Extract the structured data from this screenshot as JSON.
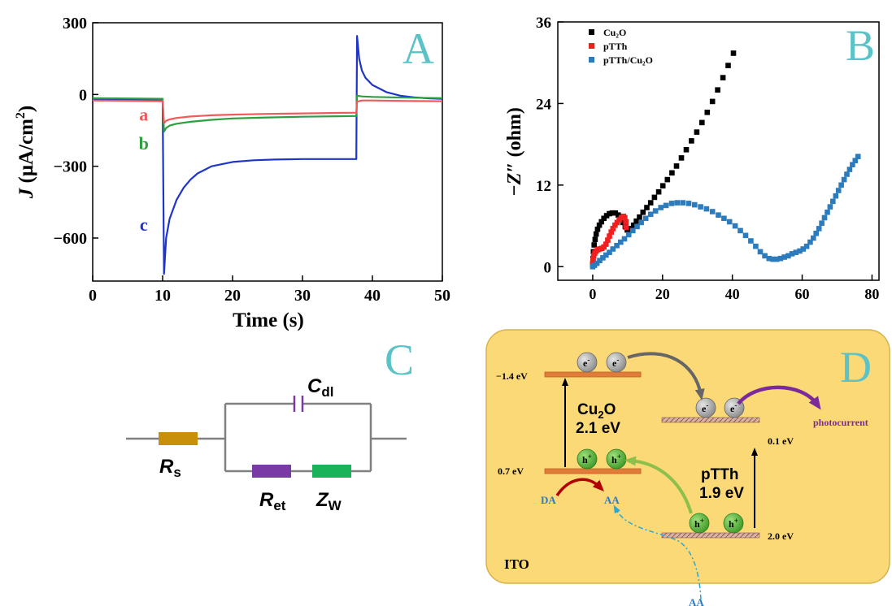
{
  "colors": {
    "red": "#f05a5a",
    "green": "#2e9e3e",
    "blue": "#1f35c8",
    "black": "#000000",
    "blue_sq": "#2b7bbd",
    "teal": "#5bc3c8",
    "panel_d_bg": "#fbd977",
    "orange_band": "#e07b39",
    "purple": "#7a2a9a",
    "green_ball": "#59b33a",
    "gray_ball": "#9a9a9a",
    "rs_color": "#c8900a",
    "ret_color": "#7a3aa5",
    "zw_color": "#1ab35a"
  },
  "panels": {
    "a": "A",
    "b": "B",
    "c": "C",
    "d": "D"
  },
  "chart_data": [
    {
      "type": "line",
      "xlabel": "Time (s)",
      "ylabel_parts": [
        "J",
        " (μA/cm",
        "2",
        ")"
      ],
      "xlim": [
        0,
        50
      ],
      "ylim": [
        -780,
        300
      ],
      "xticks": [
        0,
        10,
        20,
        30,
        40,
        50
      ],
      "yticks": [
        300,
        0,
        -300,
        -600
      ],
      "ytick_labels": [
        "300",
        "0",
        "−300",
        "−600"
      ],
      "series": [
        {
          "name": "c",
          "color_key": "blue",
          "x": [
            0,
            10,
            10.2,
            10.5,
            11,
            12,
            13,
            14,
            15,
            17,
            20,
            23,
            26,
            30,
            35,
            37.7,
            37.8,
            38.1,
            38.5,
            39,
            40,
            42,
            44,
            46,
            48,
            50
          ],
          "y": [
            -20,
            -25,
            -750,
            -600,
            -520,
            -440,
            -390,
            -355,
            -330,
            -300,
            -282,
            -275,
            -272,
            -270,
            -270,
            -270,
            245,
            150,
            100,
            70,
            40,
            10,
            -5,
            -12,
            -16,
            -18
          ]
        },
        {
          "name": "b",
          "color_key": "green",
          "x": [
            0,
            10,
            10.2,
            10.5,
            11,
            12,
            14,
            17,
            20,
            25,
            30,
            35,
            37.7,
            37.8,
            38.5,
            40,
            45,
            50
          ],
          "y": [
            -15,
            -18,
            -155,
            -140,
            -130,
            -122,
            -114,
            -106,
            -100,
            -96,
            -93,
            -91,
            -90,
            -5,
            -8,
            -10,
            -13,
            -15
          ]
        },
        {
          "name": "a",
          "color_key": "red",
          "x": [
            0,
            10,
            10.2,
            10.5,
            11,
            12,
            14,
            17,
            20,
            25,
            30,
            35,
            37.7,
            37.8,
            38.5,
            40,
            45,
            50
          ],
          "y": [
            -25,
            -28,
            -120,
            -110,
            -104,
            -98,
            -92,
            -87,
            -84,
            -81,
            -79,
            -77,
            -76,
            -30,
            -25,
            -25,
            -27,
            -28
          ]
        }
      ],
      "curve_labels": [
        {
          "text": "a",
          "color_key": "red",
          "x": 7.3,
          "y": -110
        },
        {
          "text": "b",
          "color_key": "green",
          "x": 7.3,
          "y": -230
        },
        {
          "text": "c",
          "color_key": "blue",
          "x": 7.3,
          "y": -570
        }
      ]
    },
    {
      "type": "scatter",
      "ylabel_parts": [
        "−Z″",
        " (ohm)"
      ],
      "xlim": [
        -10,
        82
      ],
      "ylim": [
        -2,
        36
      ],
      "xticks": [
        0,
        20,
        40,
        60,
        80
      ],
      "yticks": [
        0,
        12,
        24,
        36
      ],
      "legend": [
        "Cu₂O",
        "pTTh",
        "pTTh/Cu₂O"
      ],
      "series": [
        {
          "name": "Cu₂O",
          "color_key": "black",
          "points": [
            [
              0,
              0.3
            ],
            [
              0.1,
              1.2
            ],
            [
              0.2,
              2.2
            ],
            [
              0.4,
              3.2
            ],
            [
              0.7,
              4.0
            ],
            [
              1.0,
              4.8
            ],
            [
              1.4,
              5.5
            ],
            [
              1.9,
              6.1
            ],
            [
              2.5,
              6.6
            ],
            [
              3.2,
              7.1
            ],
            [
              4.0,
              7.5
            ],
            [
              4.8,
              7.8
            ],
            [
              5.6,
              7.9
            ],
            [
              6.5,
              7.9
            ],
            [
              7.3,
              7.6
            ],
            [
              8.0,
              7.1
            ],
            [
              8.7,
              6.5
            ],
            [
              9.3,
              5.9
            ],
            [
              9.9,
              5.4
            ],
            [
              10.4,
              5.3
            ],
            [
              11,
              5.6
            ],
            [
              11.7,
              6.1
            ],
            [
              12.5,
              6.7
            ],
            [
              13.4,
              7.3
            ],
            [
              14.4,
              8.0
            ],
            [
              15.5,
              8.7
            ],
            [
              16.6,
              9.4
            ],
            [
              17.7,
              10.2
            ],
            [
              18.9,
              11.0
            ],
            [
              20.1,
              11.9
            ],
            [
              21.4,
              12.8
            ],
            [
              22.7,
              13.8
            ],
            [
              24.0,
              14.8
            ],
            [
              25.4,
              16.0
            ],
            [
              26.8,
              17.2
            ],
            [
              28.3,
              18.5
            ],
            [
              29.8,
              19.8
            ],
            [
              31.3,
              21.2
            ],
            [
              32.8,
              22.7
            ],
            [
              34.3,
              24.3
            ],
            [
              35.8,
              26.0
            ],
            [
              37.3,
              27.8
            ],
            [
              38.8,
              29.6
            ],
            [
              40.3,
              31.4
            ]
          ]
        },
        {
          "name": "pTTh",
          "color_key": "red",
          "points": [
            [
              0,
              0.5
            ],
            [
              0.1,
              1.0
            ],
            [
              0.3,
              1.6
            ],
            [
              0.6,
              2.0
            ],
            [
              1.0,
              2.3
            ],
            [
              1.5,
              2.5
            ],
            [
              2.0,
              2.6
            ],
            [
              2.6,
              2.7
            ],
            [
              3.2,
              2.9
            ],
            [
              3.8,
              3.3
            ],
            [
              4.3,
              3.9
            ],
            [
              4.8,
              4.5
            ],
            [
              5.3,
              5.1
            ],
            [
              5.8,
              5.6
            ],
            [
              6.4,
              6.1
            ],
            [
              7.0,
              6.5
            ],
            [
              7.6,
              6.9
            ],
            [
              8.2,
              7.2
            ],
            [
              8.8,
              7.4
            ],
            [
              9.2,
              7.2
            ],
            [
              9.5,
              6.6
            ],
            [
              9.5,
              5.8
            ]
          ]
        },
        {
          "name": "pTTh/Cu₂O",
          "color_key": "blue_sq",
          "points": [
            [
              0,
              0.0
            ],
            [
              0.5,
              0.2
            ],
            [
              1.2,
              0.5
            ],
            [
              2.0,
              0.9
            ],
            [
              2.9,
              1.3
            ],
            [
              3.8,
              1.7
            ],
            [
              4.8,
              2.1
            ],
            [
              5.8,
              2.6
            ],
            [
              6.9,
              3.1
            ],
            [
              8.0,
              3.6
            ],
            [
              9.1,
              4.1
            ],
            [
              10.3,
              4.7
            ],
            [
              11.5,
              5.3
            ],
            [
              12.7,
              5.9
            ],
            [
              13.9,
              6.5
            ],
            [
              15.2,
              7.1
            ],
            [
              16.6,
              7.7
            ],
            [
              18.0,
              8.2
            ],
            [
              19.5,
              8.7
            ],
            [
              21.0,
              9.0
            ],
            [
              22.6,
              9.3
            ],
            [
              24.2,
              9.4
            ],
            [
              25.8,
              9.4
            ],
            [
              27.5,
              9.3
            ],
            [
              29.2,
              9.1
            ],
            [
              30.9,
              8.8
            ],
            [
              32.6,
              8.5
            ],
            [
              34.3,
              8.1
            ],
            [
              36.0,
              7.6
            ],
            [
              37.6,
              7.1
            ],
            [
              39.2,
              6.6
            ],
            [
              40.8,
              6.0
            ],
            [
              42.3,
              5.3
            ],
            [
              43.8,
              4.6
            ],
            [
              45.3,
              3.8
            ],
            [
              46.7,
              3.0
            ],
            [
              48.0,
              2.2
            ],
            [
              49.3,
              1.6
            ],
            [
              50.5,
              1.2
            ],
            [
              51.6,
              1.1
            ],
            [
              52.7,
              1.1
            ],
            [
              53.8,
              1.2
            ],
            [
              54.9,
              1.4
            ],
            [
              56.0,
              1.6
            ],
            [
              57.1,
              1.9
            ],
            [
              58.2,
              2.1
            ],
            [
              59.3,
              2.3
            ],
            [
              60.3,
              2.6
            ],
            [
              61.3,
              3.0
            ],
            [
              62.3,
              3.6
            ],
            [
              63.2,
              4.2
            ],
            [
              64.0,
              4.9
            ],
            [
              64.8,
              5.6
            ],
            [
              65.6,
              6.4
            ],
            [
              66.4,
              7.2
            ],
            [
              67.2,
              8.0
            ],
            [
              68.0,
              8.8
            ],
            [
              68.8,
              9.6
            ],
            [
              69.6,
              10.4
            ],
            [
              70.4,
              11.2
            ],
            [
              71.2,
              12.0
            ],
            [
              72.0,
              12.8
            ],
            [
              72.8,
              13.6
            ],
            [
              73.6,
              14.3
            ],
            [
              74.4,
              15.0
            ],
            [
              75.2,
              15.6
            ],
            [
              76.0,
              16.2
            ]
          ]
        }
      ]
    }
  ],
  "circuit": {
    "rs": "R",
    "rs_sub": "s",
    "cdl": "C",
    "cdl_sub": "dl",
    "ret": "R",
    "ret_sub": "et",
    "zw": "Z",
    "zw_sub": "W"
  },
  "scheme": {
    "lvl_cu_top": "−1.4 eV",
    "lvl_cu_bot": "0.7 eV",
    "lvl_ptth_top": "0.1 eV",
    "lvl_ptth_bot": "2.0 eV",
    "cu_name_main": "Cu",
    "cu_name_sub": "2",
    "cu_name_end": "O",
    "cu_gap": "2.1 eV",
    "ptth_name": "pTTh",
    "ptth_gap": "1.9 eV",
    "electron": "e",
    "electron_sup": "-",
    "hole": "h",
    "hole_sup": "+",
    "photocurrent": "photocurrent",
    "da": "DA",
    "aa": "AA",
    "aa_bottom": "AA",
    "ito": "ITO"
  }
}
